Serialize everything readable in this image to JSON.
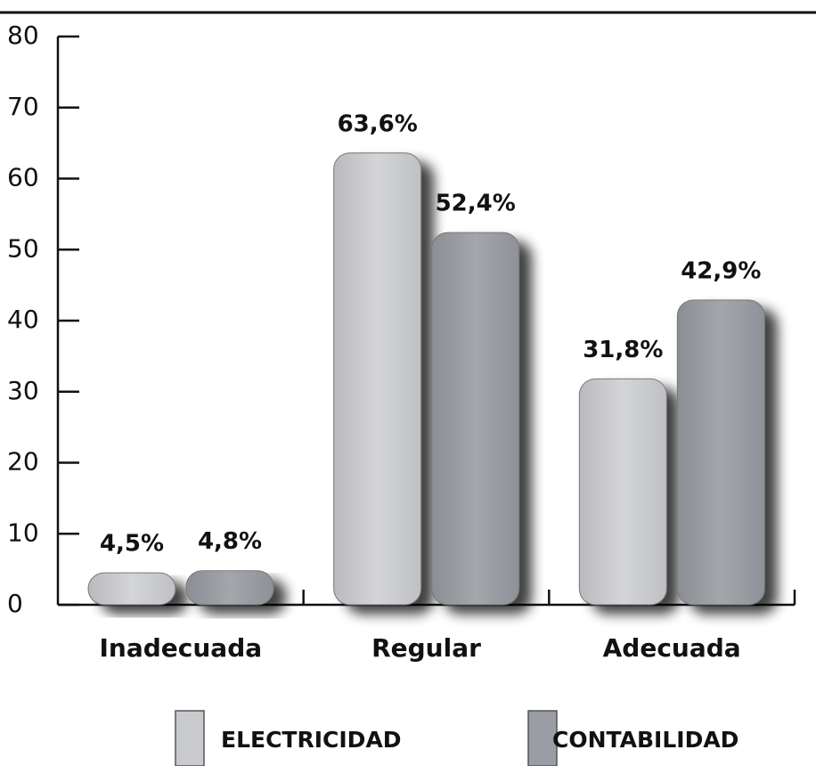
{
  "chart_data": {
    "type": "bar",
    "categories": [
      "Inadecuada",
      "Regular",
      "Adecuada"
    ],
    "series": [
      {
        "name": "ELECTRICIDAD",
        "color": "#c9cace",
        "values": [
          4.5,
          63.6,
          31.8
        ],
        "value_labels": [
          "4,5%",
          "63,6%",
          "31,8%"
        ]
      },
      {
        "name": "CONTABILIDAD",
        "color": "#9a9da3",
        "values": [
          4.8,
          52.4,
          42.9
        ],
        "value_labels": [
          "4,8%",
          "52,4%",
          "42,9%"
        ]
      }
    ],
    "ylim": [
      0,
      80
    ],
    "yticks": [
      0,
      10,
      20,
      30,
      40,
      50,
      60,
      70,
      80
    ],
    "legend": "bottom"
  }
}
